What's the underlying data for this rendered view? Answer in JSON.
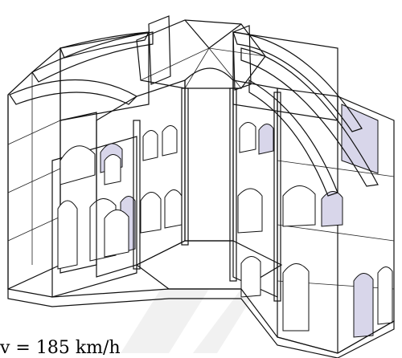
{
  "caption": {
    "text": "v = 185 km/h"
  },
  "colors": {
    "low": "#1e2cff",
    "mid": "#c9c6f2",
    "high": "#ff3c3c",
    "watermark": "#ececec"
  },
  "subject": "cathedral-nave-cross-section-stress-map"
}
